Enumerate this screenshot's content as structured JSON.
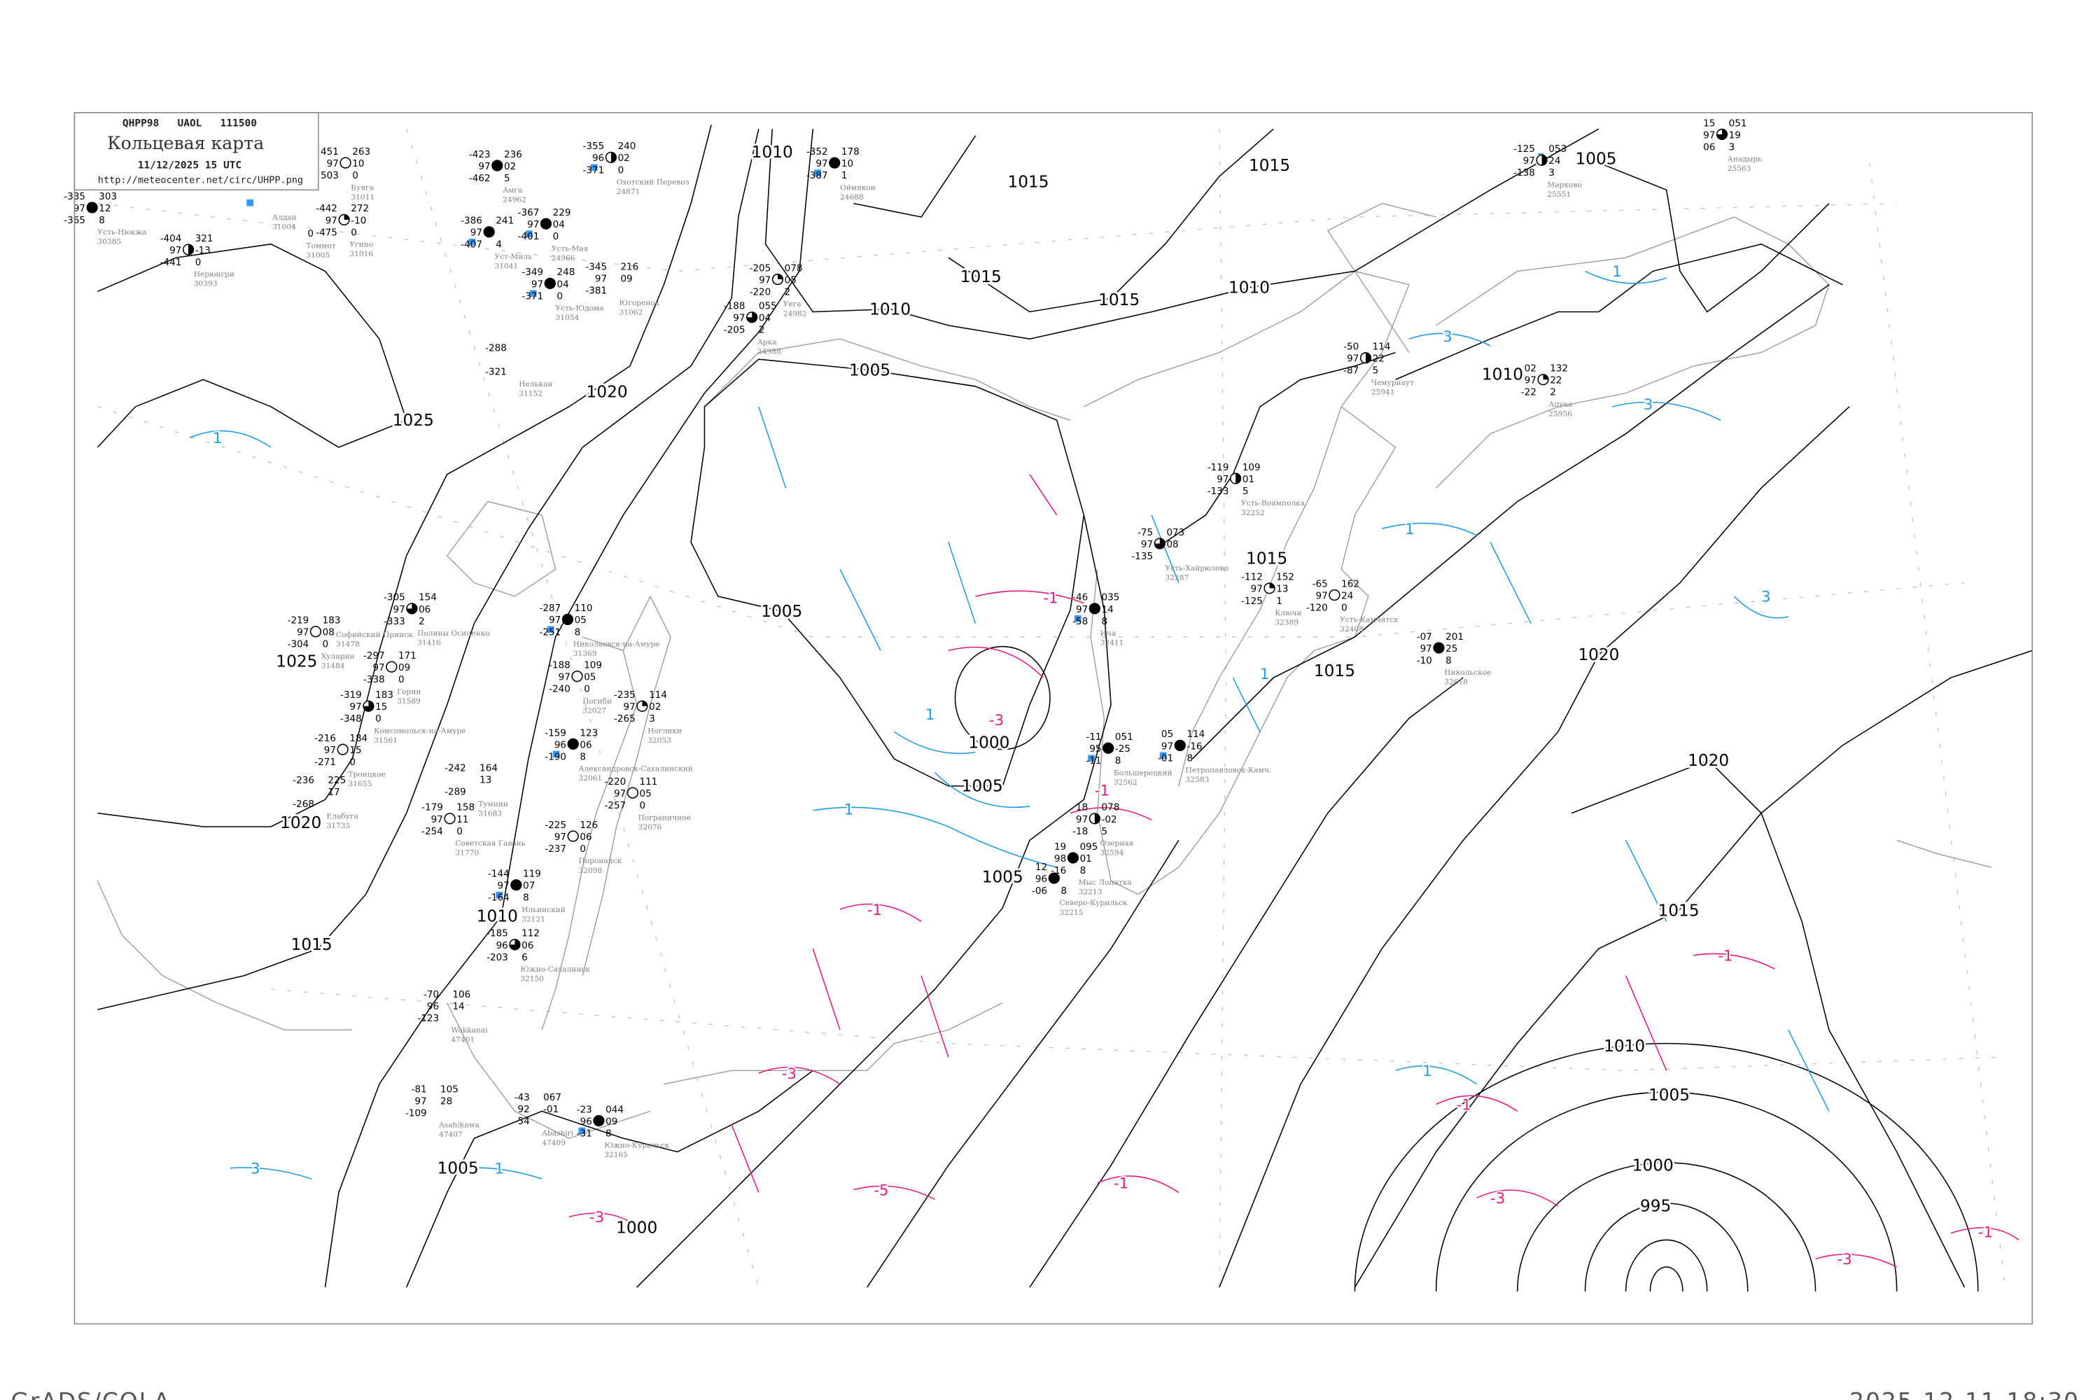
{
  "header": {
    "code_line": "QHPP98   UAOL   111500",
    "title": "Кольцевая карта",
    "datetime": "11/12/2025 15 UTC",
    "url": "http://meteocenter.net/circ/UHPP.png"
  },
  "footer": {
    "software": "GrADS/COLA",
    "render_time": "2025-12-11-18:30"
  },
  "colors": {
    "isobar": "#000000",
    "positive_isallobar": "#1e9be6",
    "negative_isallobar": "#e6197f",
    "coastline": "#9a9a9a",
    "snow_marker": "#3399ff"
  },
  "isobar_labels": [
    "1010",
    "1015",
    "1015",
    "1015",
    "1015",
    "1010",
    "1010",
    "1005",
    "1020",
    "1025",
    "1005",
    "1010",
    "1025",
    "1005",
    "1015",
    "1015",
    "1020",
    "1000",
    "1005",
    "1020",
    "1020",
    "1005",
    "1010",
    "1015",
    "1015",
    "1010",
    "1005",
    "1000",
    "995",
    "1005",
    "1000"
  ],
  "positive_labels": [
    "1",
    "1",
    "1",
    "3",
    "3",
    "1",
    "3",
    "1",
    "1",
    "1",
    "3",
    "1",
    "3"
  ],
  "negative_labels": [
    "-1",
    "-1",
    "-1",
    "-1",
    "-1",
    "-1",
    "-1",
    "-3",
    "-3",
    "-3",
    "-3",
    "-3",
    "-5"
  ],
  "stations": [
    {
      "name": "Усть-Нюкжа",
      "id": "30385",
      "left": [
        "-335",
        "97",
        "-365"
      ],
      "right": [
        "303",
        "12",
        "8"
      ],
      "cover": "full",
      "marker": false
    },
    {
      "name": "Нерюнгри",
      "id": "30393",
      "left": [
        "-404",
        "97",
        "-441"
      ],
      "right": [
        "321",
        "-13",
        "0"
      ],
      "cover": "half",
      "marker": false
    },
    {
      "name": "Буяга",
      "id": "31011",
      "left": [
        "451",
        "97",
        "503"
      ],
      "right": [
        "263",
        "10",
        "0"
      ],
      "cover": "empty",
      "marker": false
    },
    {
      "name": "Угино",
      "id": "31016",
      "left": [
        "-442",
        "97",
        "-475"
      ],
      "right": [
        "272",
        "-10",
        "0"
      ],
      "cover": "quarter",
      "marker": false
    },
    {
      "name": "Алдан",
      "id": "31004",
      "left": [
        "",
        "",
        ""
      ],
      "right": [
        "",
        "",
        ""
      ],
      "cover": "none",
      "marker": true
    },
    {
      "name": "Томмот",
      "id": "31005",
      "left": [
        "",
        "",
        ""
      ],
      "right": [
        "",
        "",
        "0"
      ],
      "cover": "none",
      "marker": false
    },
    {
      "name": "Амга",
      "id": "24962",
      "left": [
        "-423",
        "97",
        "-462"
      ],
      "right": [
        "236",
        "02",
        "5"
      ],
      "cover": "full",
      "marker": false
    },
    {
      "name": "Охотский Перевоз",
      "id": "24871",
      "left": [
        "-355",
        "96",
        "-371"
      ],
      "right": [
        "240",
        "02",
        "0"
      ],
      "cover": "half",
      "marker": true
    },
    {
      "name": "Оймякон",
      "id": "24688",
      "left": [
        "-352",
        "97",
        "-387"
      ],
      "right": [
        "178",
        "10",
        "1"
      ],
      "cover": "full",
      "marker": true
    },
    {
      "name": "Усть-Мая",
      "id": "24966",
      "left": [
        "-367",
        "97",
        "-401"
      ],
      "right": [
        "229",
        "04",
        "0"
      ],
      "cover": "full",
      "marker": true
    },
    {
      "name": "Уст-Миль",
      "id": "31041",
      "left": [
        "-386",
        "97",
        "-407"
      ],
      "right": [
        "241",
        "",
        "4"
      ],
      "cover": "full",
      "marker": true
    },
    {
      "name": "Усть-Юдома",
      "id": "31054",
      "left": [
        "-349",
        "97",
        "-371"
      ],
      "right": [
        "248",
        "04",
        "0"
      ],
      "cover": "full",
      "marker": true
    },
    {
      "name": "Югоренок",
      "id": "31062",
      "left": [
        "-345",
        "97",
        "-381"
      ],
      "right": [
        "216",
        "09",
        ""
      ],
      "cover": "none",
      "marker": false
    },
    {
      "name": "Нелькан",
      "id": "31152",
      "left": [
        "-288",
        "",
        "-321"
      ],
      "right": [
        "",
        "",
        ""
      ],
      "cover": "none",
      "marker": false
    },
    {
      "name": "Уега",
      "id": "24982",
      "left": [
        "-205",
        "97",
        "-220"
      ],
      "right": [
        "078",
        "05",
        "2"
      ],
      "cover": "quarter",
      "marker": false
    },
    {
      "name": "Арка",
      "id": "24988",
      "left": [
        "-188",
        "97",
        "-205"
      ],
      "right": [
        "055",
        "04",
        "2"
      ],
      "cover": "three-quarter",
      "marker": false
    },
    {
      "name": "Марково",
      "id": "25551",
      "left": [
        "-125",
        "97",
        "-138"
      ],
      "right": [
        "053",
        "24",
        "3"
      ],
      "cover": "half",
      "marker": false
    },
    {
      "name": "Анадырь",
      "id": "25563",
      "left": [
        "15",
        "97",
        "06"
      ],
      "right": [
        "051",
        "19",
        "3"
      ],
      "cover": "three-quarter",
      "marker": false
    },
    {
      "name": "Чемурнаут",
      "id": "25941",
      "left": [
        "-50",
        "97",
        "-87"
      ],
      "right": [
        "114",
        "22",
        "5"
      ],
      "cover": "half",
      "marker": false
    },
    {
      "name": "Апука",
      "id": "25956",
      "left": [
        "02",
        "97",
        "-22"
      ],
      "right": [
        "132",
        "22",
        "2"
      ],
      "cover": "quarter",
      "marker": false
    },
    {
      "name": "Усть-Воямполка",
      "id": "32252",
      "left": [
        "-119",
        "97",
        "-133"
      ],
      "right": [
        "109",
        "01",
        "5"
      ],
      "cover": "half",
      "marker": false
    },
    {
      "name": "Усть-Хайрюзово",
      "id": "32287",
      "left": [
        "-75",
        "97",
        "-135"
      ],
      "right": [
        "073",
        "08",
        ""
      ],
      "cover": "three-quarter",
      "marker": false
    },
    {
      "name": "Ключи",
      "id": "32389",
      "left": [
        "-112",
        "97",
        "-125"
      ],
      "right": [
        "152",
        "13",
        "1"
      ],
      "cover": "quarter",
      "marker": false
    },
    {
      "name": "Усть-Камчатск",
      "id": "32408",
      "left": [
        "-65",
        "97",
        "-120"
      ],
      "right": [
        "162",
        "24",
        "0"
      ],
      "cover": "empty",
      "marker": false
    },
    {
      "name": "Никольское",
      "id": "32618",
      "left": [
        "-07",
        "97",
        "-10"
      ],
      "right": [
        "201",
        "25",
        "8"
      ],
      "cover": "full",
      "marker": false
    },
    {
      "name": "Ича",
      "id": "32411",
      "left": [
        "-46",
        "97",
        "-58"
      ],
      "right": [
        "035",
        "14",
        "8"
      ],
      "cover": "full",
      "marker": true
    },
    {
      "name": "Большерецкий",
      "id": "32562",
      "left": [
        "-11",
        "95",
        "-11"
      ],
      "right": [
        "051",
        "-25",
        "8"
      ],
      "cover": "full",
      "marker": true
    },
    {
      "name": "Петропавловск-Камч.",
      "id": "32583",
      "left": [
        "05",
        "97",
        "-01"
      ],
      "right": [
        "114",
        "-16",
        "8"
      ],
      "cover": "full",
      "marker": true
    },
    {
      "name": "Озерная",
      "id": "32594",
      "left": [
        "18",
        "97",
        "-18"
      ],
      "right": [
        "078",
        "-02",
        "5"
      ],
      "cover": "half",
      "marker": false
    },
    {
      "name": "Мыс Лопатка",
      "id": "32213",
      "left": [
        "19",
        "98",
        "-16"
      ],
      "right": [
        "095",
        "01",
        "8"
      ],
      "cover": "full",
      "marker": false
    },
    {
      "name": "Северо-Курильск",
      "id": "32215",
      "left": [
        "12",
        "96",
        "-06"
      ],
      "right": [
        "",
        "",
        "8"
      ],
      "cover": "full",
      "marker": false
    },
    {
      "name": "Полины Осипенко",
      "id": "31416",
      "left": [
        "-305",
        "97",
        "-333"
      ],
      "right": [
        "154",
        "06",
        "2"
      ],
      "cover": "three-quarter",
      "marker": false
    },
    {
      "name": "Софийский Прииск",
      "id": "31478",
      "left": [
        "",
        "",
        ""
      ],
      "right": [
        "",
        "",
        ""
      ],
      "cover": "none",
      "marker": false
    },
    {
      "name": "Хуларин",
      "id": "31484",
      "left": [
        "-219",
        "97",
        "-304"
      ],
      "right": [
        "183",
        "08",
        "0"
      ],
      "cover": "empty",
      "marker": false
    },
    {
      "name": "Горин",
      "id": "31589",
      "left": [
        "-297",
        "97",
        "-338"
      ],
      "right": [
        "171",
        "09",
        "0"
      ],
      "cover": "empty",
      "marker": false
    },
    {
      "name": "Комсомольск-на-Амуре",
      "id": "31561",
      "left": [
        "-319",
        "97",
        "-348"
      ],
      "right": [
        "183",
        "15",
        "0"
      ],
      "cover": "three-quarter",
      "marker": false
    },
    {
      "name": "Троицкое",
      "id": "31655",
      "left": [
        "-216",
        "97",
        "-271"
      ],
      "right": [
        "184",
        "15",
        "0"
      ],
      "cover": "empty",
      "marker": false
    },
    {
      "name": "Елабуга",
      "id": "31735",
      "left": [
        "-236",
        "",
        "-268"
      ],
      "right": [
        "225",
        "17",
        ""
      ],
      "cover": "none",
      "marker": false
    },
    {
      "name": "Тумнин",
      "id": "31683",
      "left": [
        "-242",
        "",
        "-289"
      ],
      "right": [
        "164",
        "13",
        ""
      ],
      "cover": "none",
      "marker": false
    },
    {
      "name": "Советская Гавань",
      "id": "31770",
      "left": [
        "-179",
        "97",
        "-254"
      ],
      "right": [
        "158",
        "11",
        "0"
      ],
      "cover": "empty",
      "marker": false
    },
    {
      "name": "Николаевск-на-Амуре",
      "id": "31369",
      "left": [
        "-287",
        "97",
        "-251"
      ],
      "right": [
        "110",
        "05",
        "8"
      ],
      "cover": "full",
      "marker": true
    },
    {
      "name": "Погиби",
      "id": "32027",
      "left": [
        "-188",
        "97",
        "-240"
      ],
      "right": [
        "109",
        "05",
        "0"
      ],
      "cover": "empty",
      "marker": false
    },
    {
      "name": "Ноглики",
      "id": "32053",
      "left": [
        "-235",
        "97",
        "-265"
      ],
      "right": [
        "114",
        "02",
        "3"
      ],
      "cover": "quarter",
      "marker": false
    },
    {
      "name": "Александровск-Сахалинский",
      "id": "32061",
      "left": [
        "-159",
        "96",
        "-190"
      ],
      "right": [
        "123",
        "06",
        "8"
      ],
      "cover": "full",
      "marker": true
    },
    {
      "name": "Пограничное",
      "id": "32076",
      "left": [
        "-220",
        "97",
        "-257"
      ],
      "right": [
        "111",
        "05",
        "0"
      ],
      "cover": "empty",
      "marker": false
    },
    {
      "name": "Поронайск",
      "id": "32098",
      "left": [
        "-225",
        "97",
        "-237"
      ],
      "right": [
        "126",
        "06",
        "0"
      ],
      "cover": "empty",
      "marker": false
    },
    {
      "name": "Ильинский",
      "id": "32121",
      "left": [
        "-144",
        "97",
        "-164"
      ],
      "right": [
        "119",
        "07",
        "8"
      ],
      "cover": "full",
      "marker": true
    },
    {
      "name": "Южно-Сахалинск",
      "id": "32150",
      "left": [
        "-185",
        "96",
        "-203"
      ],
      "right": [
        "112",
        "06",
        "6"
      ],
      "cover": "three-quarter",
      "marker": false
    },
    {
      "name": "Wakkanai",
      "id": "47401",
      "left": [
        "-70",
        "96",
        "-123"
      ],
      "right": [
        "106",
        "14",
        ""
      ],
      "cover": "none",
      "marker": false
    },
    {
      "name": "Asahikawa",
      "id": "47407",
      "left": [
        "-81",
        "97",
        "-109"
      ],
      "right": [
        "105",
        "28",
        ""
      ],
      "cover": "none",
      "marker": false
    },
    {
      "name": "Abashiri",
      "id": "47409",
      "left": [
        "-43",
        "92",
        "-54"
      ],
      "right": [
        "067",
        "-01",
        ""
      ],
      "cover": "none",
      "marker": false
    },
    {
      "name": "Южно-Курильск",
      "id": "32165",
      "left": [
        "-23",
        "96",
        "-31"
      ],
      "right": [
        "044",
        "09",
        "8"
      ],
      "cover": "full",
      "marker": true
    }
  ]
}
